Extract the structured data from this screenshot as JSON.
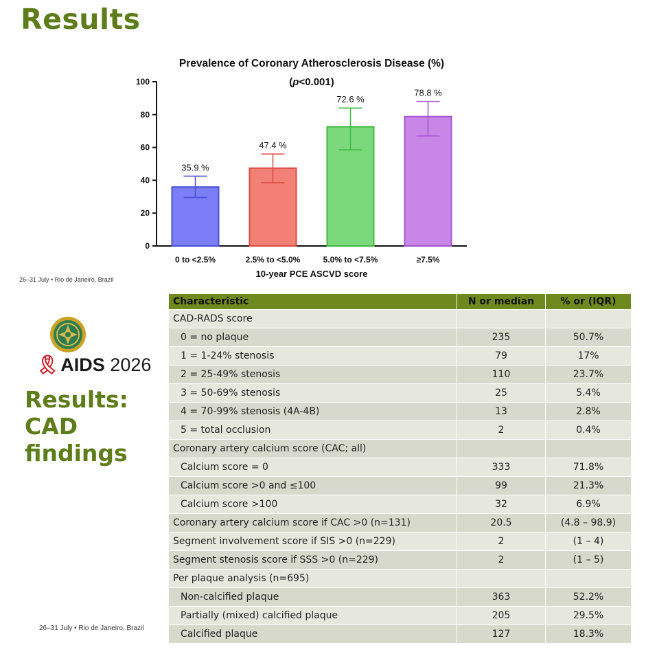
{
  "slide_top": {
    "heading": "Results",
    "footer": "26–31 July  •  Rio de Janeiro, Brazil"
  },
  "chart_data": {
    "type": "bar",
    "title": "Prevalence of Coronary Atherosclerosis Disease (%)",
    "subtitle_prefix": "(",
    "subtitle_p": "p",
    "subtitle_rest": "<0.001)",
    "xlabel": "10-year PCE ASCVD score",
    "ylabel": "",
    "ylim": [
      0,
      100
    ],
    "yticks": [
      0,
      20,
      40,
      60,
      80,
      100
    ],
    "categories": [
      "0 to <2.5%",
      "2.5% to <5.0%",
      "5.0% to <7.5%",
      "≥7.5%"
    ],
    "values": [
      35.9,
      47.4,
      72.6,
      78.8
    ],
    "value_labels": [
      "35.9 %",
      "47.4 %",
      "72.6 %",
      "78.8 %"
    ],
    "error_low": [
      29.5,
      38.5,
      58.5,
      67.0
    ],
    "error_high": [
      42.5,
      56.0,
      84.0,
      88.0
    ],
    "colors": [
      "#7b7ef7",
      "#f28077",
      "#7bd97b",
      "#c886e6"
    ],
    "edge_colors": [
      "#4a4fd6",
      "#dc4a44",
      "#3db83d",
      "#a555d0"
    ],
    "grid": false
  },
  "slide_bottom": {
    "logo_text_strong": "AIDS",
    "logo_text_year": " 2026",
    "section_title_lines": [
      "Results:",
      "CAD",
      "findings"
    ],
    "footer": "26–31 July  •  Rio de Janeiro, Brazil"
  },
  "table": {
    "headers": [
      "Characteristic",
      "N or median",
      "% or (IQR)"
    ],
    "rows": [
      {
        "label": "CAD-RADS score",
        "n": "",
        "pct": "",
        "indent": false
      },
      {
        "label": "0 = no plaque",
        "n": "235",
        "pct": "50.7%",
        "indent": true
      },
      {
        "label": "1 = 1-24% stenosis",
        "n": "79",
        "pct": "17%",
        "indent": true
      },
      {
        "label": "2 = 25-49% stenosis",
        "n": "110",
        "pct": "23.7%",
        "indent": true
      },
      {
        "label": "3 = 50-69% stenosis",
        "n": "25",
        "pct": "5.4%",
        "indent": true
      },
      {
        "label": "4 = 70-99% stenosis (4A-4B)",
        "n": "13",
        "pct": "2.8%",
        "indent": true
      },
      {
        "label": "5 = total occlusion",
        "n": "2",
        "pct": "0.4%",
        "indent": true
      },
      {
        "label": "Coronary artery calcium score (CAC; all)",
        "n": "",
        "pct": "",
        "indent": false
      },
      {
        "label": "Calcium score = 0",
        "n": "333",
        "pct": "71.8%",
        "indent": true
      },
      {
        "label": "Calcium score >0 and ≤100",
        "n": "99",
        "pct": "21.3%",
        "indent": true
      },
      {
        "label": "Calcium score >100",
        "n": "32",
        "pct": "6.9%",
        "indent": true
      },
      {
        "label": "Coronary artery calcium score if CAC >0 (n=131)",
        "n": "20.5",
        "pct": "(4.8 – 98.9)",
        "indent": false
      },
      {
        "label": "Segment involvement score if SIS >0 (n=229)",
        "n": "2",
        "pct": "(1 – 4)",
        "indent": false
      },
      {
        "label": "Segment stenosis score if SSS >0 (n=229)",
        "n": "2",
        "pct": "(1 – 5)",
        "indent": false
      },
      {
        "label": "Per plaque analysis (n=695)",
        "n": "",
        "pct": "",
        "indent": false
      },
      {
        "label": "Non-calcified plaque",
        "n": "363",
        "pct": "52.2%",
        "indent": true
      },
      {
        "label": "Partially (mixed) calcified plaque",
        "n": "205",
        "pct": "29.5%",
        "indent": true
      },
      {
        "label": "Calcified plaque",
        "n": "127",
        "pct": "18.3%",
        "indent": true
      }
    ]
  }
}
